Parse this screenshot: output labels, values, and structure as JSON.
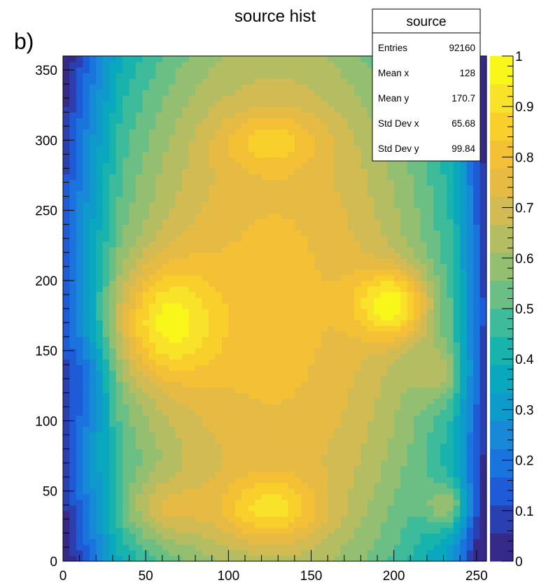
{
  "chart_data": {
    "type": "heatmap",
    "title": "source hist",
    "panel_label": "b)",
    "xlabel": "",
    "ylabel": "",
    "xlim": [
      0,
      256
    ],
    "ylim": [
      0,
      360
    ],
    "zlim": [
      0,
      1
    ],
    "x_ticks": [
      "0",
      "50",
      "100",
      "150",
      "200",
      "250"
    ],
    "y_ticks": [
      "0",
      "50",
      "100",
      "150",
      "200",
      "250",
      "300",
      "350"
    ],
    "z_ticks": [
      "0",
      "0.1",
      "0.2",
      "0.3",
      "0.4",
      "0.5",
      "0.6",
      "0.7",
      "0.8",
      "0.9",
      "1"
    ],
    "colormap": [
      "#352a87",
      "#2a3fb0",
      "#1e5bd6",
      "#1a74de",
      "#1889d6",
      "#0e9bcb",
      "#0aa8be",
      "#19b3ad",
      "#3dbb9a",
      "#6bbf84",
      "#94bf71",
      "#b5bd62",
      "#d1bb52",
      "#e6bb44",
      "#f4c035",
      "#f9cf2c",
      "#f8e32a",
      "#f9f719"
    ],
    "hotspots": [
      {
        "x": 60,
        "y": 170,
        "sx": 22,
        "sy": 30,
        "a": 0.3
      },
      {
        "x": 200,
        "y": 183,
        "sx": 16,
        "sy": 18,
        "a": 0.34
      },
      {
        "x": 125,
        "y": 37,
        "sx": 22,
        "sy": 16,
        "a": 0.22
      },
      {
        "x": 60,
        "y": 37,
        "sx": 18,
        "sy": 16,
        "a": 0.16
      },
      {
        "x": 233,
        "y": 40,
        "sx": 10,
        "sy": 12,
        "a": 0.22
      },
      {
        "x": 125,
        "y": 300,
        "sx": 22,
        "sy": 14,
        "a": 0.14
      },
      {
        "x": 228,
        "y": 135,
        "sx": 10,
        "sy": 15,
        "a": 0.15
      }
    ]
  },
  "stats_box": {
    "title": "source",
    "rows": [
      {
        "label": "Entries",
        "value": "92160"
      },
      {
        "label": "Mean x",
        "value": "128"
      },
      {
        "label": "Mean y",
        "value": "170.7"
      },
      {
        "label": "Std Dev x",
        "value": "65.68"
      },
      {
        "label": "Std Dev y",
        "value": "99.84"
      }
    ]
  }
}
